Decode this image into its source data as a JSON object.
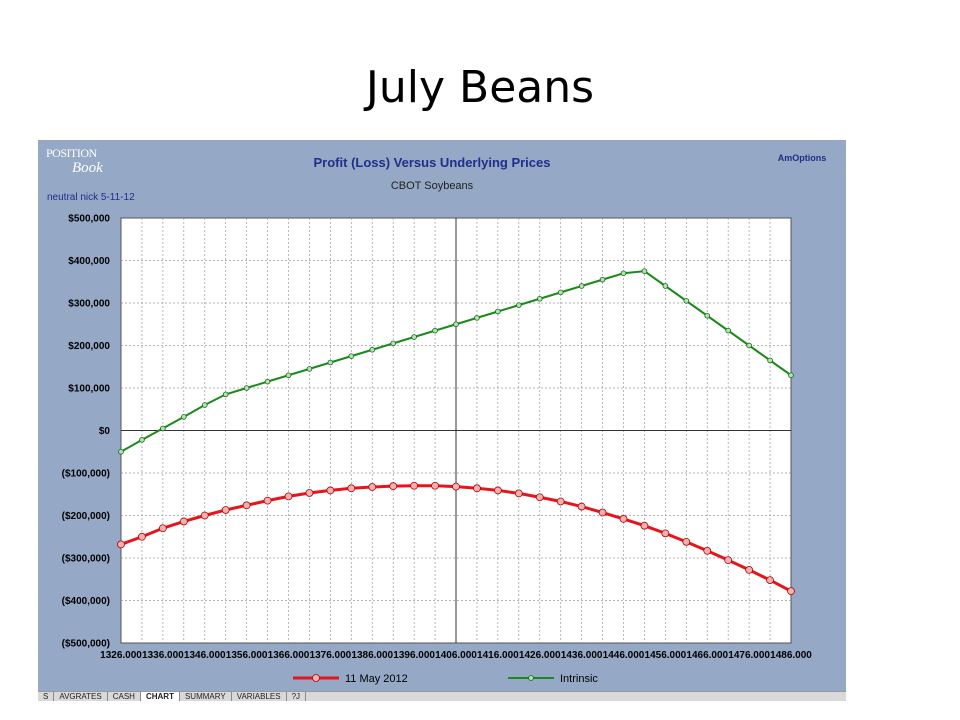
{
  "slide": {
    "title": "July Beans"
  },
  "header": {
    "logo_line1": "POSITION",
    "logo_line2": "Book",
    "company": "AmOptions",
    "subtitle_note": "neutral nick 5-11-12"
  },
  "sheet_tabs": [
    {
      "label": "S",
      "active": false
    },
    {
      "label": "AVGRATES",
      "active": false
    },
    {
      "label": "CASH",
      "active": false
    },
    {
      "label": "CHART",
      "active": true
    },
    {
      "label": "SUMMARY",
      "active": false
    },
    {
      "label": "VARIABLES",
      "active": false
    },
    {
      "label": "?J",
      "active": false
    }
  ],
  "colors": {
    "frame_bg": "#95a8c6",
    "plot_bg": "#ffffff",
    "title_text": "#1f2f8a",
    "series_red": "#e8141b",
    "series_green": "#1a8a1a"
  },
  "chart_data": {
    "type": "line",
    "title": "Profit (Loss) Versus Underlying Prices",
    "subtitle": "CBOT Soybeans",
    "xlabel": "",
    "ylabel": "",
    "x_ticks": [
      "1326.000",
      "1336.000",
      "1346.000",
      "1356.000",
      "1366.000",
      "1376.000",
      "1386.000",
      "1396.000",
      "1406.000",
      "1416.000",
      "1426.000",
      "1436.000",
      "1446.000",
      "1456.000",
      "1466.000",
      "1476.000",
      "1486.000"
    ],
    "x": [
      1326,
      1331,
      1336,
      1341,
      1346,
      1351,
      1356,
      1361,
      1366,
      1371,
      1376,
      1381,
      1386,
      1391,
      1396,
      1401,
      1406,
      1411,
      1416,
      1421,
      1426,
      1431,
      1436,
      1441,
      1446,
      1451,
      1456,
      1461,
      1466,
      1471,
      1476,
      1481,
      1486
    ],
    "xlim": [
      1326,
      1486
    ],
    "ylim": [
      -500000,
      500000
    ],
    "y_ticks": [
      {
        "value": 500000,
        "label": "$500,000"
      },
      {
        "value": 400000,
        "label": "$400,000"
      },
      {
        "value": 300000,
        "label": "$300,000"
      },
      {
        "value": 200000,
        "label": "$200,000"
      },
      {
        "value": 100000,
        "label": "$100,000"
      },
      {
        "value": 0,
        "label": "$0"
      },
      {
        "value": -100000,
        "label": "($100,000)"
      },
      {
        "value": -200000,
        "label": "($200,000)"
      },
      {
        "value": -300000,
        "label": "($300,000)"
      },
      {
        "value": -400000,
        "label": "($400,000)"
      },
      {
        "value": -500000,
        "label": "($500,000)"
      }
    ],
    "zero_line_x": 1406,
    "grid": true,
    "legend_position": "bottom",
    "series": [
      {
        "name": "11 May 2012",
        "color": "#e8141b",
        "values": [
          -268000,
          -250000,
          -230000,
          -214000,
          -200000,
          -187000,
          -176000,
          -165000,
          -155000,
          -147000,
          -141000,
          -136000,
          -133000,
          -131000,
          -130000,
          -130000,
          -132000,
          -136000,
          -141000,
          -148000,
          -157000,
          -167000,
          -179000,
          -193000,
          -208000,
          -224000,
          -242000,
          -262000,
          -283000,
          -305000,
          -328000,
          -352000,
          -378000
        ]
      },
      {
        "name": "Intrinsic",
        "color": "#1a8a1a",
        "values": [
          -50000,
          -22000,
          5000,
          32000,
          60000,
          85000,
          100000,
          115000,
          130000,
          145000,
          160000,
          175000,
          190000,
          205000,
          220000,
          235000,
          250000,
          265000,
          280000,
          295000,
          310000,
          325000,
          340000,
          355000,
          370000,
          375000,
          340000,
          305000,
          270000,
          235000,
          200000,
          165000,
          130000
        ]
      }
    ]
  }
}
